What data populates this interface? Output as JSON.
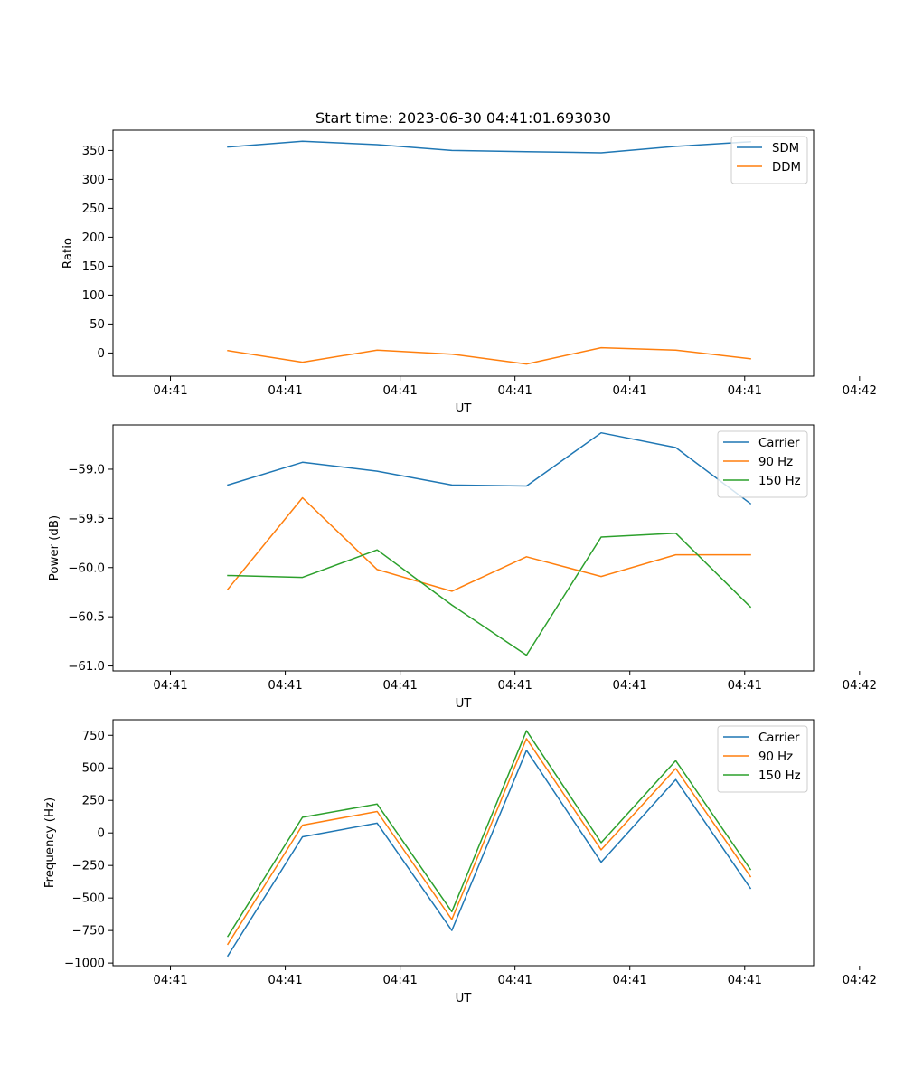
{
  "figure": {
    "title": "Start time: 2023-06-30 04:41:01.693030"
  },
  "chart_data": [
    {
      "type": "line",
      "title": "Start time: 2023-06-30 04:41:01.693030",
      "xlabel": "UT",
      "ylabel": "Ratio",
      "xlim": [
        -0.5,
        5.6
      ],
      "ylim": [
        -40,
        385
      ],
      "grid": false,
      "legend_position": "upper right",
      "x_ticks": [
        {
          "value": 0,
          "label": "04:41"
        },
        {
          "value": 1,
          "label": "04:41"
        },
        {
          "value": 2,
          "label": "04:41"
        },
        {
          "value": 3,
          "label": "04:41"
        },
        {
          "value": 4,
          "label": "04:41"
        },
        {
          "value": 5,
          "label": "04:41"
        },
        {
          "value": 6,
          "label": "04:42"
        }
      ],
      "y_ticks": [
        0,
        50,
        100,
        150,
        200,
        250,
        300,
        350
      ],
      "x": [
        0.5,
        1.15,
        1.8,
        2.45,
        3.1,
        3.75,
        4.4,
        5.05
      ],
      "series": [
        {
          "name": "SDM",
          "color": "#1f77b4",
          "values": [
            356,
            366,
            360,
            350,
            348,
            346,
            357,
            365
          ]
        },
        {
          "name": "DDM",
          "color": "#ff7f0e",
          "values": [
            4,
            -16,
            5,
            -2,
            -19,
            9,
            5,
            -10
          ]
        }
      ]
    },
    {
      "type": "line",
      "xlabel": "UT",
      "ylabel": "Power (dB)",
      "xlim": [
        -0.5,
        5.6
      ],
      "ylim": [
        -61.05,
        -58.55
      ],
      "grid": false,
      "legend_position": "upper right",
      "x_ticks": [
        {
          "value": 0,
          "label": "04:41"
        },
        {
          "value": 1,
          "label": "04:41"
        },
        {
          "value": 2,
          "label": "04:41"
        },
        {
          "value": 3,
          "label": "04:41"
        },
        {
          "value": 4,
          "label": "04:41"
        },
        {
          "value": 5,
          "label": "04:41"
        },
        {
          "value": 6,
          "label": "04:42"
        }
      ],
      "y_ticks": [
        -61.0,
        -60.5,
        -60.0,
        -59.5,
        -59.0
      ],
      "y_tick_labels": [
        "−61.0",
        "−60.5",
        "−60.0",
        "−59.5",
        "−59.0"
      ],
      "x": [
        0.5,
        1.15,
        1.8,
        2.45,
        3.1,
        3.75,
        4.4,
        5.05
      ],
      "series": [
        {
          "name": "Carrier",
          "color": "#1f77b4",
          "values": [
            -59.16,
            -58.93,
            -59.02,
            -59.16,
            -59.17,
            -58.63,
            -58.78,
            -59.35
          ]
        },
        {
          "name": "90 Hz",
          "color": "#ff7f0e",
          "values": [
            -60.22,
            -59.29,
            -60.02,
            -60.24,
            -59.89,
            -60.09,
            -59.87,
            -59.87
          ]
        },
        {
          "name": "150 Hz",
          "color": "#2ca02c",
          "values": [
            -60.08,
            -60.1,
            -59.82,
            -60.38,
            -60.89,
            -59.69,
            -59.65,
            -60.4
          ]
        }
      ]
    },
    {
      "type": "line",
      "xlabel": "UT",
      "ylabel": "Frequency (Hz)",
      "xlim": [
        -0.5,
        5.6
      ],
      "ylim": [
        -1020,
        870
      ],
      "grid": false,
      "legend_position": "upper right",
      "x_ticks": [
        {
          "value": 0,
          "label": "04:41"
        },
        {
          "value": 1,
          "label": "04:41"
        },
        {
          "value": 2,
          "label": "04:41"
        },
        {
          "value": 3,
          "label": "04:41"
        },
        {
          "value": 4,
          "label": "04:41"
        },
        {
          "value": 5,
          "label": "04:41"
        },
        {
          "value": 6,
          "label": "04:42"
        }
      ],
      "y_ticks": [
        -1000,
        -750,
        -500,
        -250,
        0,
        250,
        500,
        750
      ],
      "y_tick_labels": [
        "−1000",
        "−750",
        "−500",
        "−250",
        "0",
        "250",
        "500",
        "750"
      ],
      "x": [
        0.5,
        1.15,
        1.8,
        2.45,
        3.1,
        3.75,
        4.4,
        5.05
      ],
      "series": [
        {
          "name": "Carrier",
          "color": "#1f77b4",
          "values": [
            -945,
            -30,
            75,
            -750,
            635,
            -225,
            410,
            -425
          ]
        },
        {
          "name": "90 Hz",
          "color": "#ff7f0e",
          "values": [
            -855,
            60,
            165,
            -665,
            725,
            -130,
            495,
            -335
          ]
        },
        {
          "name": "150 Hz",
          "color": "#2ca02c",
          "values": [
            -795,
            120,
            222,
            -605,
            785,
            -75,
            555,
            -280
          ]
        }
      ]
    }
  ]
}
